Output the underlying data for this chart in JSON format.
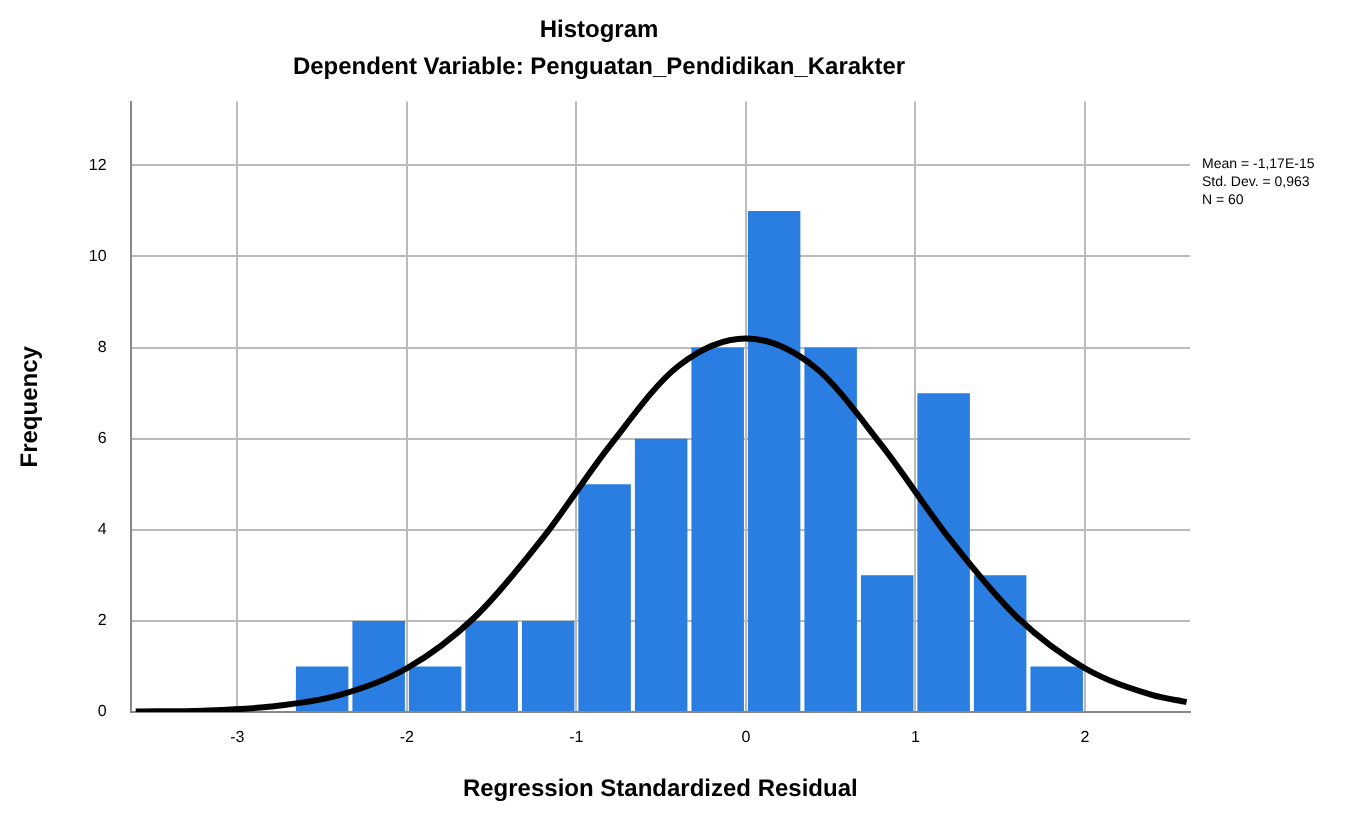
{
  "chart_data": {
    "type": "histogram",
    "title": "Histogram",
    "subtitle": "Dependent Variable: Penguatan_Pendidikan_Karakter",
    "xlabel": "Regression Standardized Residual",
    "ylabel": "Frequency",
    "bins": [
      -2.667,
      -2.333,
      -2,
      -1.667,
      -1.333,
      -1,
      -0.667,
      -0.333,
      0,
      0.333,
      0.667,
      1,
      1.333,
      1.667,
      2
    ],
    "values": [
      1,
      2,
      1,
      2,
      2,
      5,
      6,
      8,
      11,
      8,
      3,
      7,
      3,
      1
    ],
    "color": "#2a7de1",
    "series": [
      {
        "type": "line",
        "color": "#000000",
        "x": [
          -3.6,
          -3.2,
          -2.8,
          -2.4,
          -2,
          -1.6,
          -1.2,
          -0.8,
          -0.4,
          0,
          0.4,
          0.8,
          1.2,
          1.6,
          2,
          2.4,
          2.6
        ],
        "values": [
          0.01,
          0.03,
          0.12,
          0.37,
          0.96,
          2.08,
          3.81,
          5.86,
          7.59,
          8.2,
          7.59,
          5.86,
          3.81,
          2.08,
          0.96,
          0.37,
          0.22
        ]
      }
    ],
    "xlim": [
      -3.63,
      2.62
    ],
    "xticks": [
      -3,
      -2,
      -1,
      0,
      1,
      2
    ],
    "ylim": [
      0,
      13.4
    ],
    "yticks": [
      0,
      2,
      4,
      6,
      8,
      10,
      12
    ],
    "grid": true,
    "legend": false,
    "marker": "none",
    "annotations": [
      "Mean = -1,17E-15",
      "Std. Dev. = 0,963",
      "N = 60"
    ]
  }
}
